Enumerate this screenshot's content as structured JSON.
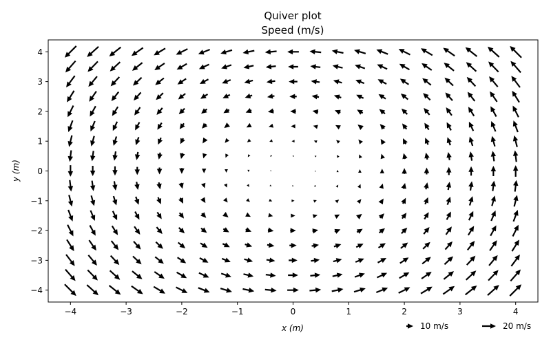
{
  "chart_data": {
    "type": "quiver",
    "title": "Quiver plot",
    "subtitle": "Speed (m/s)",
    "xlabel": "x (m)",
    "ylabel": "y (m)",
    "xlim": [
      -4.4,
      4.4
    ],
    "ylim": [
      -4.4,
      4.4
    ],
    "xticks": [
      -4,
      -3,
      -2,
      -1,
      0,
      1,
      2,
      3,
      4
    ],
    "yticks": [
      -4,
      -3,
      -2,
      -1,
      0,
      1,
      2,
      3,
      4
    ],
    "xtick_labels": [
      "−4",
      "−3",
      "−2",
      "−1",
      "0",
      "1",
      "2",
      "3",
      "4"
    ],
    "ytick_labels": [
      "−4",
      "−3",
      "−2",
      "−1",
      "0",
      "1",
      "2",
      "3",
      "4"
    ],
    "grid": false,
    "field": {
      "u_formula": "-y",
      "v_formula": "x",
      "x_start": -4,
      "x_end": 3.8,
      "x_step": 0.4,
      "y_start": -4,
      "y_end": 4,
      "y_step": 0.5
    },
    "arrow_color": "#000000",
    "keys": [
      {
        "speed": 10,
        "label": "10 m/s"
      },
      {
        "speed": 20,
        "label": "20 m/s"
      }
    ]
  }
}
